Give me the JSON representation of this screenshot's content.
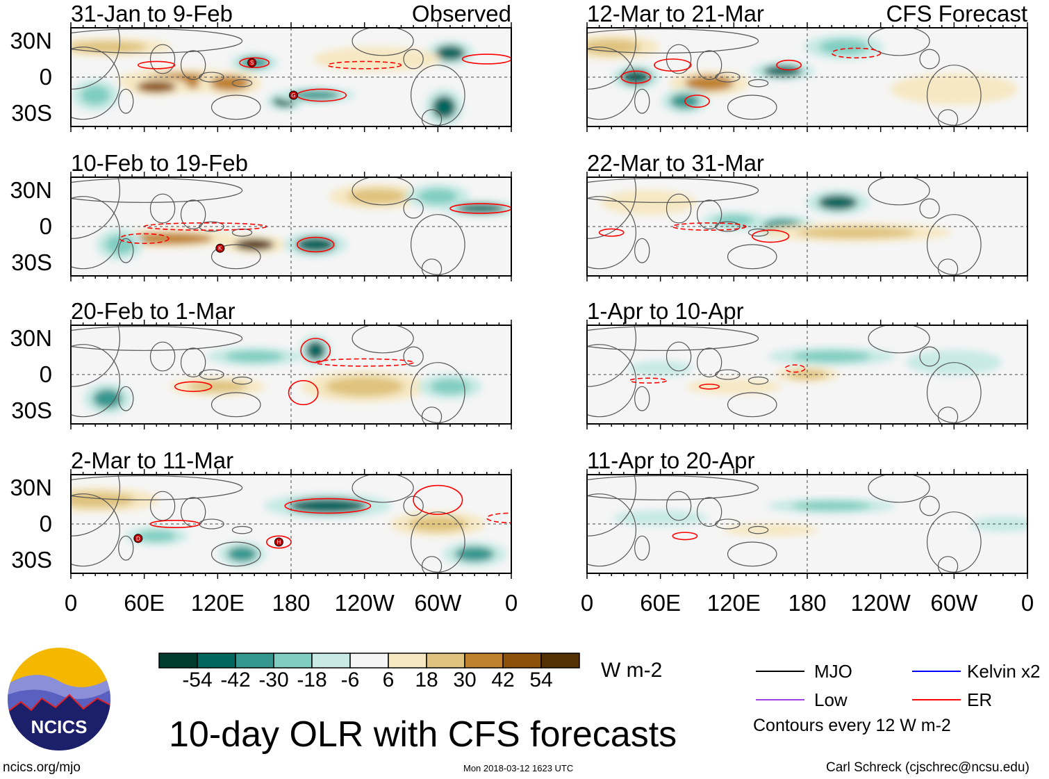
{
  "colors": [
    "#003c30",
    "#01665e",
    "#35978f",
    "#80cdc1",
    "#c7eae5",
    "#f5f5f5",
    "#f6e8c3",
    "#dfc27d",
    "#bf812d",
    "#8c510a",
    "#543005"
  ],
  "levels": [
    -60,
    -54,
    -42,
    -30,
    -18,
    -6,
    6,
    18,
    30,
    42,
    54,
    66
  ],
  "panels": [
    {
      "title": "31-Jan to 9-Feb",
      "tag": "Observed",
      "col": 0,
      "row": 0,
      "blobs": [
        [
          90,
          -3,
          40,
          8,
          36
        ],
        [
          70,
          -8,
          20,
          6,
          44
        ],
        [
          130,
          -5,
          20,
          8,
          30
        ],
        [
          150,
          12,
          15,
          6,
          -40
        ],
        [
          175,
          -20,
          12,
          6,
          -48
        ],
        [
          200,
          -15,
          25,
          5,
          -40
        ],
        [
          310,
          20,
          15,
          8,
          -44
        ],
        [
          305,
          -25,
          12,
          12,
          -50
        ],
        [
          20,
          -15,
          15,
          10,
          -20
        ],
        [
          250,
          15,
          40,
          8,
          10
        ],
        [
          30,
          25,
          40,
          6,
          20
        ]
      ],
      "contours": [
        [
          70,
          10,
          15,
          3,
          1
        ],
        [
          150,
          12,
          12,
          4,
          1
        ],
        [
          240,
          10,
          30,
          3,
          0
        ],
        [
          205,
          -15,
          20,
          5,
          1
        ],
        [
          340,
          15,
          20,
          4,
          1
        ]
      ],
      "storms": [
        [
          "S",
          148,
          12
        ],
        [
          "G",
          182,
          -15
        ]
      ]
    },
    {
      "title": "10-Feb to 19-Feb",
      "tag": "",
      "col": 0,
      "row": 1,
      "blobs": [
        [
          80,
          -10,
          45,
          6,
          36
        ],
        [
          150,
          -15,
          20,
          6,
          54
        ],
        [
          200,
          -15,
          20,
          8,
          -44
        ],
        [
          335,
          15,
          25,
          5,
          -50
        ],
        [
          250,
          25,
          30,
          8,
          20
        ],
        [
          40,
          -15,
          15,
          10,
          -20
        ],
        [
          300,
          25,
          20,
          8,
          -30
        ]
      ],
      "contours": [
        [
          335,
          15,
          25,
          4,
          1
        ],
        [
          200,
          -15,
          15,
          6,
          1
        ],
        [
          110,
          0,
          50,
          3,
          0
        ],
        [
          60,
          -10,
          20,
          4,
          0
        ]
      ],
      "storms": [
        [
          "K",
          122,
          -18
        ]
      ]
    },
    {
      "title": "20-Feb to 1-Mar",
      "tag": "",
      "col": 0,
      "row": 2,
      "blobs": [
        [
          200,
          20,
          10,
          10,
          -50
        ],
        [
          30,
          -20,
          15,
          10,
          -40
        ],
        [
          240,
          -10,
          40,
          10,
          20
        ],
        [
          120,
          -10,
          30,
          6,
          20
        ],
        [
          310,
          -10,
          20,
          8,
          -20
        ],
        [
          150,
          15,
          30,
          6,
          -20
        ]
      ],
      "contours": [
        [
          200,
          20,
          12,
          10,
          1
        ],
        [
          190,
          -15,
          12,
          10,
          1
        ],
        [
          100,
          -10,
          15,
          4,
          1
        ],
        [
          240,
          10,
          40,
          3,
          0
        ]
      ],
      "storms": []
    },
    {
      "title": "2-Mar to 11-Mar",
      "tag": "",
      "col": 0,
      "row": 3,
      "blobs": [
        [
          210,
          15,
          40,
          8,
          -50
        ],
        [
          20,
          20,
          40,
          8,
          20
        ],
        [
          140,
          -25,
          15,
          8,
          -40
        ],
        [
          330,
          -25,
          20,
          8,
          -40
        ],
        [
          300,
          0,
          30,
          8,
          20
        ],
        [
          70,
          -10,
          20,
          6,
          -30
        ]
      ],
      "contours": [
        [
          210,
          15,
          35,
          6,
          1
        ],
        [
          300,
          20,
          20,
          12,
          1
        ],
        [
          85,
          0,
          20,
          3,
          1
        ],
        [
          170,
          -15,
          10,
          5,
          1
        ],
        [
          360,
          5,
          20,
          4,
          0
        ]
      ],
      "storms": [
        [
          "D",
          55,
          -12
        ],
        [
          "H",
          170,
          -15
        ]
      ]
    },
    {
      "title": "12-Mar to 21-Mar",
      "tag": "CFS Forecast",
      "col": 1,
      "row": 0,
      "blobs": [
        [
          40,
          0,
          15,
          8,
          -50
        ],
        [
          100,
          -5,
          25,
          8,
          40
        ],
        [
          160,
          5,
          20,
          6,
          -44
        ],
        [
          210,
          25,
          25,
          8,
          -30
        ],
        [
          80,
          -20,
          15,
          8,
          -40
        ],
        [
          300,
          -10,
          40,
          10,
          15
        ],
        [
          20,
          25,
          30,
          8,
          20
        ]
      ],
      "contours": [
        [
          70,
          10,
          15,
          5,
          1
        ],
        [
          165,
          10,
          10,
          4,
          1
        ],
        [
          220,
          20,
          20,
          4,
          0
        ],
        [
          90,
          -20,
          10,
          5,
          1
        ],
        [
          40,
          0,
          12,
          5,
          1
        ]
      ],
      "storms": []
    },
    {
      "title": "22-Mar to 31-Mar",
      "tag": "",
      "col": 1,
      "row": 1,
      "blobs": [
        [
          205,
          20,
          20,
          8,
          -50
        ],
        [
          160,
          0,
          20,
          8,
          -40
        ],
        [
          220,
          -5,
          60,
          6,
          20
        ],
        [
          50,
          20,
          30,
          8,
          15
        ],
        [
          120,
          5,
          20,
          6,
          -20
        ]
      ],
      "contours": [
        [
          150,
          -8,
          15,
          5,
          1
        ],
        [
          100,
          0,
          30,
          3,
          0
        ],
        [
          20,
          -5,
          10,
          3,
          1
        ]
      ],
      "storms": []
    },
    {
      "title": "1-Apr to 10-Apr",
      "tag": "",
      "col": 1,
      "row": 2,
      "blobs": [
        [
          200,
          15,
          40,
          6,
          -25
        ],
        [
          180,
          0,
          20,
          5,
          20
        ],
        [
          60,
          5,
          20,
          5,
          -18
        ],
        [
          300,
          10,
          30,
          8,
          -15
        ],
        [
          120,
          -10,
          30,
          5,
          15
        ]
      ],
      "contours": [
        [
          170,
          5,
          8,
          3,
          0
        ],
        [
          100,
          -10,
          8,
          2,
          1
        ],
        [
          50,
          -5,
          15,
          2,
          0
        ]
      ],
      "storms": []
    },
    {
      "title": "11-Apr to 20-Apr",
      "tag": "",
      "col": 1,
      "row": 3,
      "blobs": [
        [
          200,
          15,
          40,
          5,
          -20
        ],
        [
          60,
          5,
          30,
          5,
          -15
        ],
        [
          150,
          -5,
          30,
          4,
          15
        ],
        [
          340,
          0,
          20,
          5,
          -15
        ]
      ],
      "contours": [
        [
          80,
          -10,
          10,
          3,
          1
        ]
      ],
      "storms": []
    }
  ],
  "lat_labels": [
    "30N",
    "0",
    "30S"
  ],
  "lon_labels": [
    "0",
    "60E",
    "120E",
    "180",
    "120W",
    "60W",
    "0"
  ],
  "colorbar": {
    "ticks": [
      "-54",
      "-42",
      "-30",
      "-18",
      "-6",
      "6",
      "18",
      "30",
      "42",
      "54"
    ],
    "units": "W m-2"
  },
  "legend": {
    "items": [
      {
        "label": "MJO",
        "color": "#000000"
      },
      {
        "label": "Kelvin x2",
        "color": "#0000ff"
      },
      {
        "label": "Low",
        "color": "#a040e0"
      },
      {
        "label": "ER",
        "color": "#ff0000"
      }
    ],
    "note": "Contours every 12 W m-2"
  },
  "title": "10-day OLR with CFS forecasts",
  "logo_text": "NCICS",
  "url": "ncics.org/mjo",
  "timestamp": "Mon 2018-03-12 1623 UTC",
  "credit": "Carl Schreck (cjschrec@ncsu.edu)"
}
